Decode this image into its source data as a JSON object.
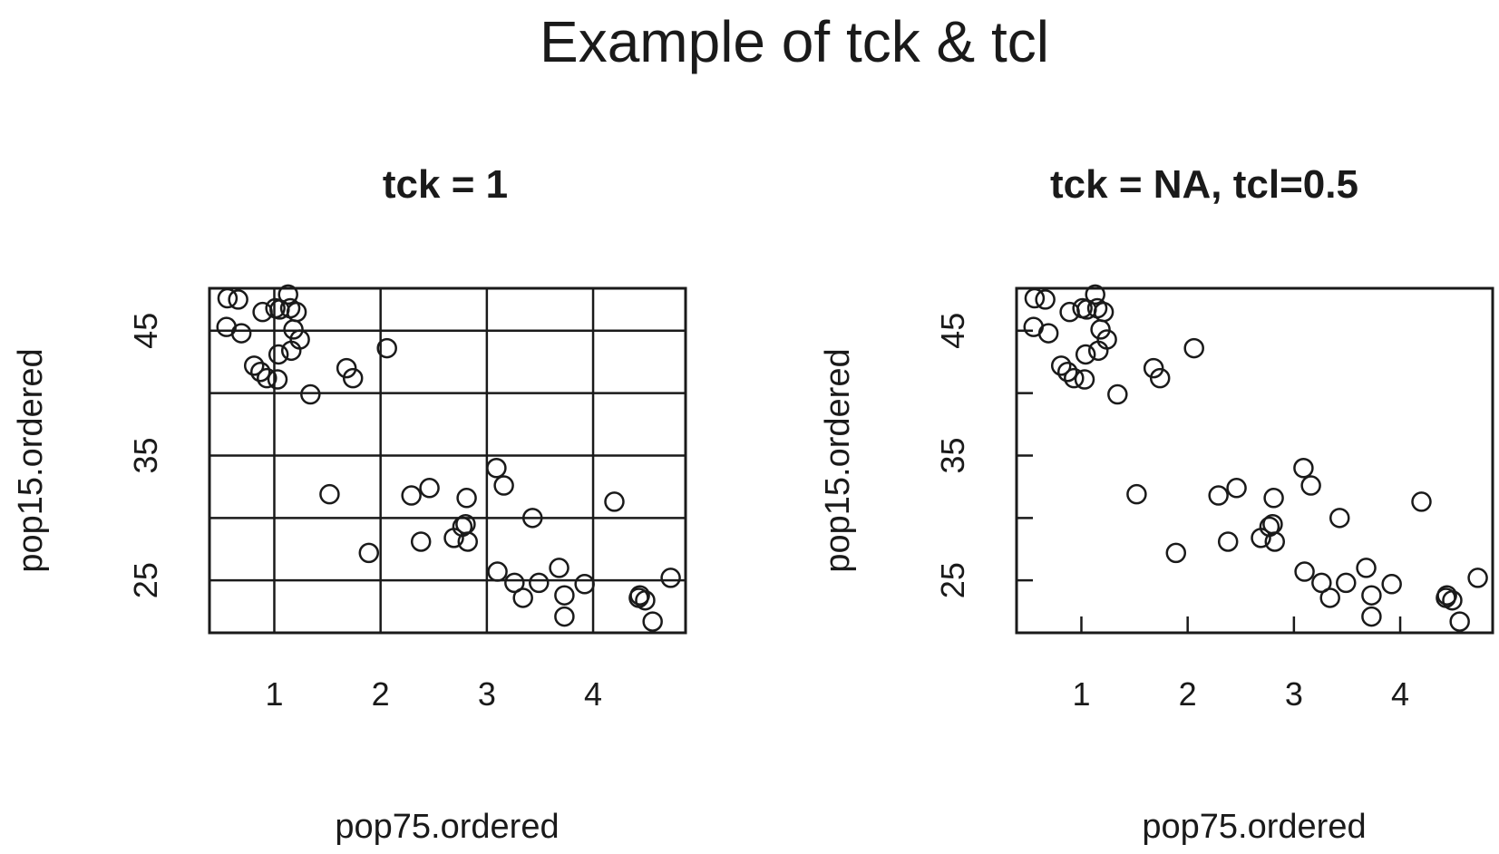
{
  "title": "Example of tck & tcl",
  "chart_data": [
    {
      "type": "scatter",
      "title": "tck = 1",
      "xlabel": "pop75.ordered",
      "ylabel": "pop15.ordered",
      "xlim": [
        0.39,
        4.87
      ],
      "ylim": [
        20.8,
        48.4
      ],
      "xticks": [
        1,
        2,
        3,
        4
      ],
      "yticks": [
        25,
        35,
        45
      ],
      "yticks_all": [
        25,
        30,
        35,
        40,
        45
      ],
      "tck": 1,
      "grid": true
    },
    {
      "type": "scatter",
      "title": "tck = NA, tcl=0.5",
      "xlabel": "pop75.ordered",
      "ylabel": "pop15.ordered",
      "xlim": [
        0.39,
        4.87
      ],
      "ylim": [
        20.8,
        48.4
      ],
      "xticks": [
        1,
        2,
        3,
        4
      ],
      "yticks": [
        25,
        35,
        45
      ],
      "yticks_all": [
        25,
        30,
        35,
        40,
        45
      ],
      "tcl": 0.5,
      "grid": false
    }
  ],
  "points": [
    [
      0.56,
      47.6
    ],
    [
      0.66,
      47.5
    ],
    [
      0.55,
      45.3
    ],
    [
      0.69,
      44.8
    ],
    [
      0.89,
      46.5
    ],
    [
      1.01,
      46.8
    ],
    [
      1.05,
      46.7
    ],
    [
      1.13,
      47.9
    ],
    [
      1.15,
      46.8
    ],
    [
      1.21,
      46.5
    ],
    [
      1.18,
      45.1
    ],
    [
      1.24,
      44.3
    ],
    [
      1.16,
      43.4
    ],
    [
      1.04,
      43.1
    ],
    [
      0.81,
      42.2
    ],
    [
      0.87,
      41.7
    ],
    [
      0.93,
      41.2
    ],
    [
      1.03,
      41.1
    ],
    [
      1.34,
      39.9
    ],
    [
      1.68,
      42.0
    ],
    [
      1.74,
      41.2
    ],
    [
      2.06,
      43.6
    ],
    [
      1.52,
      31.9
    ],
    [
      1.89,
      27.2
    ],
    [
      2.29,
      31.8
    ],
    [
      2.38,
      28.1
    ],
    [
      2.46,
      32.4
    ],
    [
      2.69,
      28.4
    ],
    [
      2.77,
      29.3
    ],
    [
      2.8,
      29.5
    ],
    [
      2.82,
      28.1
    ],
    [
      2.81,
      31.6
    ],
    [
      3.09,
      34.0
    ],
    [
      3.16,
      32.6
    ],
    [
      3.43,
      30.0
    ],
    [
      3.1,
      25.7
    ],
    [
      3.26,
      24.8
    ],
    [
      3.34,
      23.6
    ],
    [
      3.49,
      24.8
    ],
    [
      3.68,
      26.0
    ],
    [
      3.73,
      23.8
    ],
    [
      3.73,
      22.1
    ],
    [
      3.92,
      24.7
    ],
    [
      4.2,
      31.3
    ],
    [
      4.43,
      23.6
    ],
    [
      4.44,
      23.8
    ],
    [
      4.49,
      23.4
    ],
    [
      4.56,
      21.7
    ],
    [
      4.73,
      25.2
    ]
  ]
}
